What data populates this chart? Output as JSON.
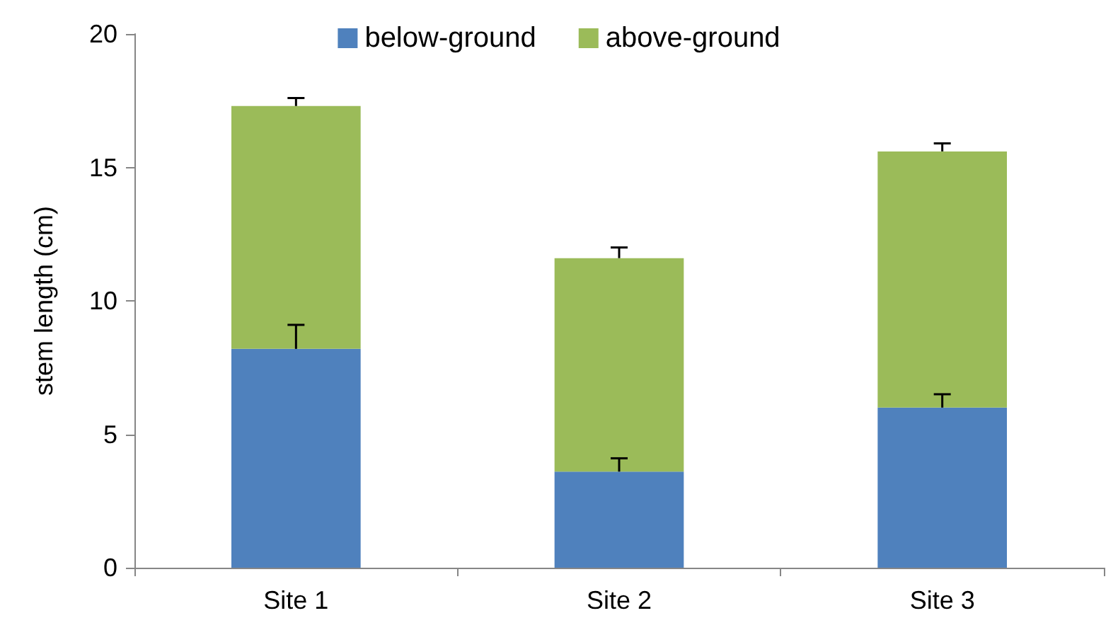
{
  "chart_data": {
    "type": "bar",
    "stacked": true,
    "ylabel": "stem length (cm)",
    "categories": [
      "Site 1",
      "Site 2",
      "Site 3"
    ],
    "series": [
      {
        "name": "below-ground",
        "color": "#4f81bd",
        "values": [
          8.2,
          3.6,
          6.0
        ],
        "errors": [
          [
            8.2,
            9.1
          ],
          [
            3.6,
            4.1
          ],
          [
            6.0,
            6.5
          ]
        ]
      },
      {
        "name": "above-ground",
        "color": "#9bbb59",
        "values": [
          9.1,
          8.0,
          9.6
        ],
        "errors": [
          [
            17.3,
            17.6
          ],
          [
            11.6,
            12.0
          ],
          [
            15.6,
            15.9
          ]
        ]
      }
    ],
    "ylim": [
      0,
      20
    ],
    "yticks": [
      0,
      5,
      10,
      15,
      20
    ],
    "grid": false,
    "legend": "top"
  }
}
